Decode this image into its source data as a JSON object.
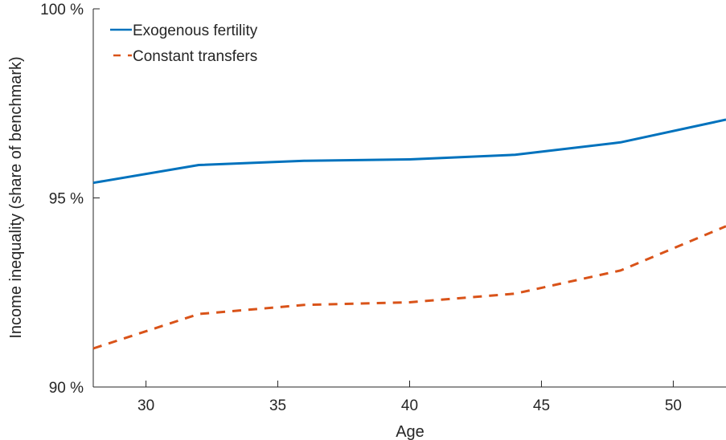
{
  "chart_data": {
    "type": "line",
    "xlabel": "Age",
    "ylabel": "Income inequality (share of benchmark)",
    "xlim": [
      28,
      52
    ],
    "ylim": [
      90,
      100
    ],
    "xticks": [
      30,
      35,
      40,
      45,
      50
    ],
    "xtick_labels": [
      "30",
      "35",
      "40",
      "45",
      "50"
    ],
    "yticks": [
      90,
      95,
      100
    ],
    "ytick_labels": [
      "90 %",
      "95 %",
      "100 %"
    ],
    "grid": false,
    "legend_position": "top-left",
    "series": [
      {
        "name": "Exogenous fertility",
        "color": "#0072BD",
        "style": "solid",
        "x": [
          28,
          32,
          36,
          40,
          44,
          48,
          52
        ],
        "y": [
          95.4,
          95.87,
          95.98,
          96.02,
          96.14,
          96.47,
          97.07
        ]
      },
      {
        "name": "Constant transfers",
        "color": "#D95319",
        "style": "dashed",
        "x": [
          28,
          32,
          36,
          40,
          44,
          48,
          52
        ],
        "y": [
          91.02,
          91.93,
          92.17,
          92.24,
          92.47,
          93.08,
          94.25
        ]
      }
    ]
  }
}
